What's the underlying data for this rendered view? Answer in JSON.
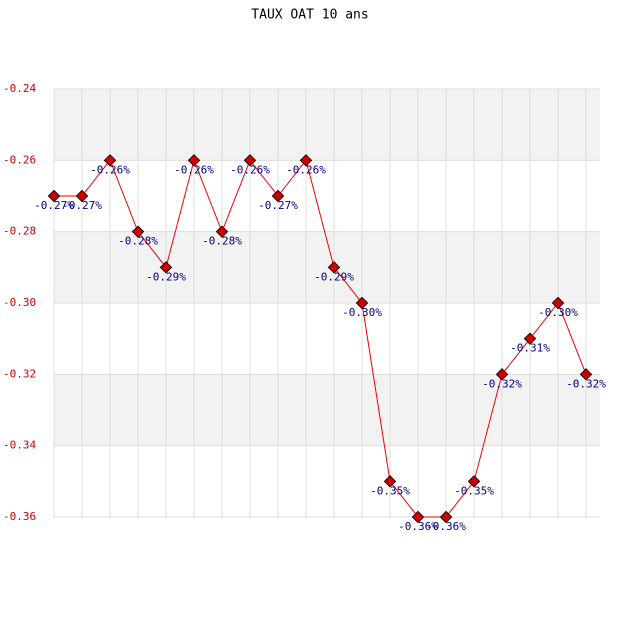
{
  "chart_data": {
    "type": "line",
    "title": "TAUX OAT 10 ans",
    "categories": [
      null,
      null,
      null,
      null,
      null,
      null,
      null,
      null,
      null,
      null,
      null,
      null,
      null,
      null,
      null,
      null,
      null,
      null,
      null,
      null
    ],
    "series": [
      {
        "color": "#ee0000",
        "values": [
          -0.27,
          -0.27,
          -0.26,
          -0.28,
          -0.29,
          -0.26,
          -0.28,
          -0.26,
          -0.27,
          -0.26,
          -0.29,
          -0.3,
          -0.35,
          -0.36,
          -0.36,
          -0.35,
          -0.32,
          -0.31,
          -0.3,
          -0.32
        ],
        "value_labels": [
          "-0.27%",
          "-0.27%",
          "-0.26%",
          "-0.28%",
          "-0.29%",
          "-0.26%",
          "-0.28%",
          "-0.26%",
          "-0.27%",
          "-0.26%",
          "-0.29%",
          "-0.30%",
          "-0.35%",
          "-0.36%",
          "-0.36%",
          "-0.35%",
          "-0.32%",
          "-0.31%",
          "-0.30%",
          "-0.32%"
        ]
      }
    ],
    "ylim": [
      -0.36,
      -0.24
    ],
    "yticks": [
      -0.36,
      -0.34,
      -0.32,
      {
        "value": -0.3,
        "label": "-0.30"
      },
      -0.28,
      -0.26,
      -0.24
    ],
    "grid": true
  }
}
